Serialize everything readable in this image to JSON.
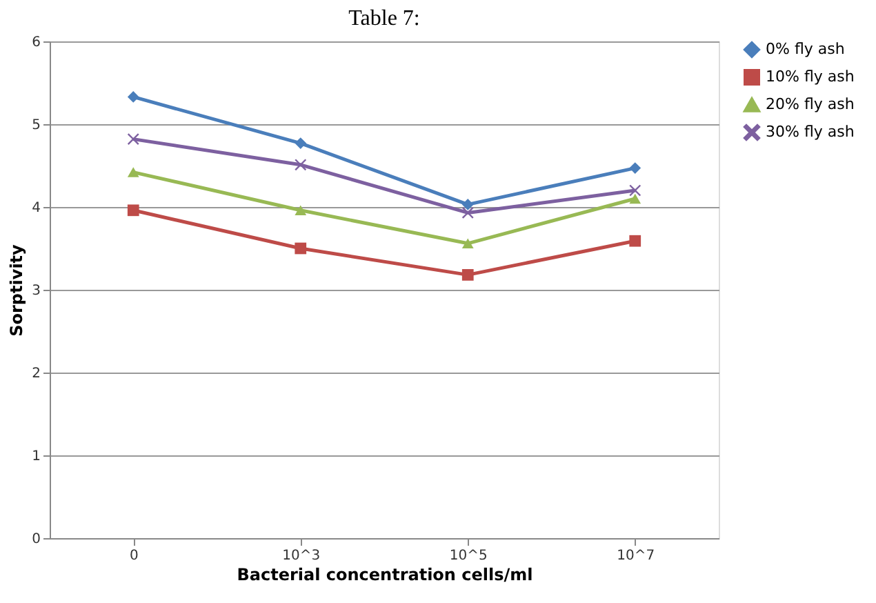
{
  "chart_data": {
    "type": "line",
    "title": "Table 7:",
    "xlabel": "Bacterial concentration cells/ml",
    "ylabel": "Sorptivity",
    "categories": [
      "0",
      "10^3",
      "10^5",
      "10^7"
    ],
    "series": [
      {
        "name": "0% fly ash",
        "color": "#4a7ebb",
        "marker": "diamond",
        "values": [
          5.33,
          4.77,
          4.03,
          4.47
        ]
      },
      {
        "name": "10% fly ash",
        "color": "#be4b48",
        "marker": "square",
        "values": [
          3.96,
          3.5,
          3.18,
          3.59
        ]
      },
      {
        "name": "20% fly ash",
        "color": "#98b954",
        "marker": "triangle",
        "values": [
          4.42,
          3.96,
          3.56,
          4.1
        ]
      },
      {
        "name": "30% fly ash",
        "color": "#7d60a0",
        "marker": "cross",
        "values": [
          4.82,
          4.51,
          3.93,
          4.2
        ]
      }
    ],
    "ylim": [
      0,
      6
    ],
    "yticks": [
      0,
      1,
      2,
      3,
      4,
      5,
      6
    ],
    "grid": "y",
    "legend": "right",
    "line_style": "solid"
  }
}
